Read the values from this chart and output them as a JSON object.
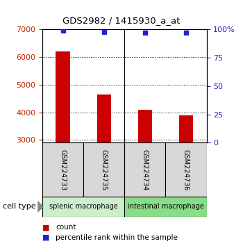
{
  "title": "GDS2982 / 1415930_a_at",
  "samples": [
    "GSM224733",
    "GSM224735",
    "GSM224734",
    "GSM224736"
  ],
  "counts": [
    6200,
    4650,
    4100,
    3900
  ],
  "percentile_ranks": [
    99,
    98,
    97,
    97
  ],
  "ylim_left": [
    2900,
    7000
  ],
  "ylim_right": [
    0,
    100
  ],
  "yticks_left": [
    3000,
    4000,
    5000,
    6000,
    7000
  ],
  "yticks_right": [
    0,
    25,
    50,
    75,
    100
  ],
  "bar_color": "#cc0000",
  "dot_color": "#2222cc",
  "left_tick_color": "#cc2200",
  "right_tick_color": "#2222cc",
  "cell_types": [
    {
      "label": "splenic macrophage",
      "samples": [
        0,
        1
      ],
      "color": "#cceecc"
    },
    {
      "label": "intestinal macrophage",
      "samples": [
        2,
        3
      ],
      "color": "#88dd88"
    }
  ],
  "legend_items": [
    {
      "color": "#cc0000",
      "label": "count"
    },
    {
      "color": "#2222cc",
      "label": "percentile rank within the sample"
    }
  ],
  "bar_width": 0.35,
  "cell_type_label": "cell type"
}
